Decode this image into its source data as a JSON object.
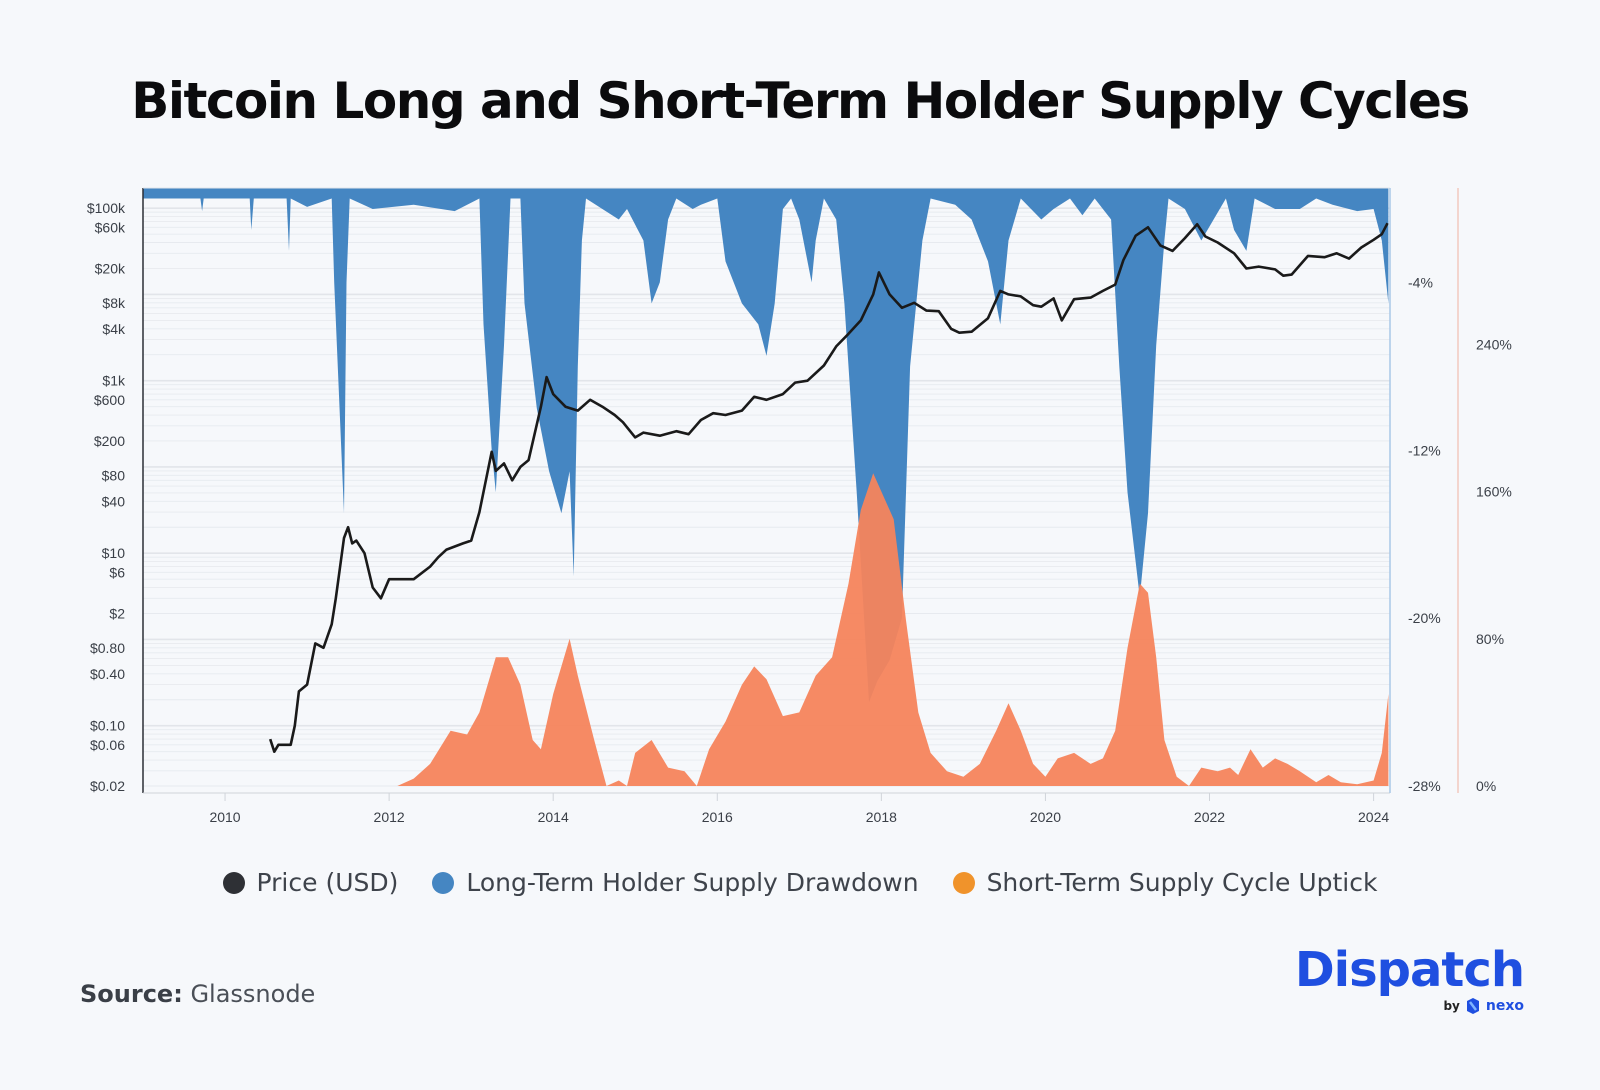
{
  "title": "Bitcoin Long and Short-Term Holder Supply Cycles",
  "legend": [
    {
      "label": "Price (USD)",
      "color": "#2E3035"
    },
    {
      "label": "Long-Term Holder Supply Drawdown",
      "color": "#4586C2"
    },
    {
      "label": "Short-Term Supply Cycle Uptick",
      "color": "#F0932B"
    }
  ],
  "source": {
    "prefix": "Source:",
    "name": "Glassnode"
  },
  "brand": {
    "name": "Dispatch",
    "by": "by",
    "partner": "nexo"
  },
  "colors": {
    "price": "#1A1A1A",
    "lth": "#4586C2",
    "sth": "#F5845C",
    "grid": "#E2E5EA",
    "right_axis_line": "#F2C9C0",
    "lth_axis_line": "#A9C8E8"
  },
  "chart_data": {
    "type": "line",
    "title": "Bitcoin Long and Short-Term Holder Supply Cycles",
    "xlabel": "",
    "xlim": [
      2009.0,
      2024.2
    ],
    "x_ticks": [
      "2010",
      "2012",
      "2014",
      "2016",
      "2018",
      "2020",
      "2022",
      "2024"
    ],
    "left_axis": {
      "scale": "log",
      "ylim": [
        0.02,
        150000
      ],
      "tick_labels": [
        "$100k",
        "$60k",
        "$20k",
        "$8k",
        "$4k",
        "$1k",
        "$600",
        "$200",
        "$80",
        "$40",
        "$10",
        "$6",
        "$2",
        "$0.80",
        "$0.40",
        "$0.10",
        "$0.06",
        "$0.02"
      ],
      "tick_values": [
        100000,
        60000,
        20000,
        8000,
        4000,
        1000,
        600,
        200,
        80,
        40,
        10,
        6,
        2,
        0.8,
        0.4,
        0.1,
        0.06,
        0.02
      ]
    },
    "lth_axis": {
      "ylim": [
        -28,
        0.5
      ],
      "tick_labels": [
        "-4%",
        "-12%",
        "-20%",
        "-28%"
      ],
      "tick_values": [
        -4,
        -12,
        -20,
        -28
      ]
    },
    "sth_axis": {
      "ylim": [
        0,
        325
      ],
      "tick_labels": [
        "240%",
        "160%",
        "80%",
        "0%"
      ],
      "tick_values": [
        240,
        160,
        80,
        0
      ]
    },
    "series": [
      {
        "name": "Price (USD)",
        "axis": "left",
        "points": [
          [
            2010.55,
            0.07
          ],
          [
            2010.6,
            0.05
          ],
          [
            2010.65,
            0.06
          ],
          [
            2010.8,
            0.06
          ],
          [
            2010.85,
            0.1
          ],
          [
            2010.9,
            0.25
          ],
          [
            2011.0,
            0.3
          ],
          [
            2011.1,
            0.9
          ],
          [
            2011.2,
            0.8
          ],
          [
            2011.3,
            1.5
          ],
          [
            2011.35,
            3
          ],
          [
            2011.45,
            15
          ],
          [
            2011.5,
            20
          ],
          [
            2011.55,
            13
          ],
          [
            2011.6,
            14
          ],
          [
            2011.7,
            10
          ],
          [
            2011.8,
            4
          ],
          [
            2011.9,
            3
          ],
          [
            2012.0,
            5
          ],
          [
            2012.1,
            5
          ],
          [
            2012.3,
            5
          ],
          [
            2012.5,
            7
          ],
          [
            2012.6,
            9
          ],
          [
            2012.7,
            11
          ],
          [
            2012.9,
            13
          ],
          [
            2013.0,
            14
          ],
          [
            2013.1,
            30
          ],
          [
            2013.25,
            150
          ],
          [
            2013.3,
            90
          ],
          [
            2013.4,
            110
          ],
          [
            2013.5,
            70
          ],
          [
            2013.6,
            100
          ],
          [
            2013.7,
            120
          ],
          [
            2013.85,
            500
          ],
          [
            2013.92,
            1100
          ],
          [
            2014.0,
            700
          ],
          [
            2014.15,
            500
          ],
          [
            2014.3,
            450
          ],
          [
            2014.45,
            600
          ],
          [
            2014.6,
            500
          ],
          [
            2014.75,
            400
          ],
          [
            2014.85,
            330
          ],
          [
            2015.0,
            220
          ],
          [
            2015.1,
            250
          ],
          [
            2015.3,
            230
          ],
          [
            2015.5,
            260
          ],
          [
            2015.65,
            240
          ],
          [
            2015.8,
            350
          ],
          [
            2015.95,
            420
          ],
          [
            2016.1,
            400
          ],
          [
            2016.3,
            450
          ],
          [
            2016.45,
            650
          ],
          [
            2016.6,
            600
          ],
          [
            2016.8,
            700
          ],
          [
            2016.95,
            950
          ],
          [
            2017.1,
            1000
          ],
          [
            2017.3,
            1500
          ],
          [
            2017.45,
            2500
          ],
          [
            2017.6,
            3500
          ],
          [
            2017.75,
            5000
          ],
          [
            2017.9,
            10000
          ],
          [
            2017.97,
            18000
          ],
          [
            2018.1,
            10000
          ],
          [
            2018.25,
            7000
          ],
          [
            2018.4,
            8000
          ],
          [
            2018.55,
            6500
          ],
          [
            2018.7,
            6400
          ],
          [
            2018.85,
            4000
          ],
          [
            2018.95,
            3600
          ],
          [
            2019.1,
            3700
          ],
          [
            2019.3,
            5300
          ],
          [
            2019.45,
            11000
          ],
          [
            2019.55,
            10000
          ],
          [
            2019.7,
            9500
          ],
          [
            2019.85,
            7500
          ],
          [
            2019.95,
            7200
          ],
          [
            2020.1,
            9000
          ],
          [
            2020.2,
            5000
          ],
          [
            2020.35,
            8800
          ],
          [
            2020.55,
            9200
          ],
          [
            2020.7,
            11000
          ],
          [
            2020.85,
            13000
          ],
          [
            2020.95,
            25000
          ],
          [
            2021.1,
            48000
          ],
          [
            2021.25,
            60000
          ],
          [
            2021.4,
            37000
          ],
          [
            2021.55,
            32000
          ],
          [
            2021.7,
            45000
          ],
          [
            2021.85,
            65000
          ],
          [
            2021.95,
            47000
          ],
          [
            2022.1,
            40000
          ],
          [
            2022.3,
            30000
          ],
          [
            2022.45,
            20000
          ],
          [
            2022.6,
            21000
          ],
          [
            2022.8,
            19500
          ],
          [
            2022.9,
            16500
          ],
          [
            2023.0,
            17000
          ],
          [
            2023.2,
            28000
          ],
          [
            2023.4,
            27000
          ],
          [
            2023.55,
            30000
          ],
          [
            2023.7,
            26000
          ],
          [
            2023.85,
            35000
          ],
          [
            2024.0,
            43000
          ],
          [
            2024.1,
            50000
          ],
          [
            2024.17,
            67000
          ]
        ]
      },
      {
        "name": "Long-Term Holder Supply Drawdown",
        "axis": "lth",
        "points": [
          [
            2009.0,
            0
          ],
          [
            2009.7,
            0
          ],
          [
            2009.72,
            -0.6
          ],
          [
            2009.74,
            0
          ],
          [
            2010.3,
            0
          ],
          [
            2010.32,
            -1.5
          ],
          [
            2010.35,
            0
          ],
          [
            2010.75,
            0
          ],
          [
            2010.78,
            -2.5
          ],
          [
            2010.8,
            0
          ],
          [
            2011.0,
            -0.4
          ],
          [
            2011.3,
            0
          ],
          [
            2011.33,
            -4
          ],
          [
            2011.45,
            -15
          ],
          [
            2011.48,
            -4
          ],
          [
            2011.52,
            0
          ],
          [
            2011.8,
            -0.5
          ],
          [
            2012.3,
            -0.3
          ],
          [
            2012.8,
            -0.6
          ],
          [
            2013.1,
            0
          ],
          [
            2013.15,
            -6
          ],
          [
            2013.25,
            -12
          ],
          [
            2013.3,
            -14
          ],
          [
            2013.4,
            -7
          ],
          [
            2013.48,
            0
          ],
          [
            2013.6,
            0
          ],
          [
            2013.65,
            -5
          ],
          [
            2013.8,
            -10
          ],
          [
            2013.95,
            -13
          ],
          [
            2014.1,
            -15
          ],
          [
            2014.2,
            -13
          ],
          [
            2014.25,
            -18
          ],
          [
            2014.3,
            -8
          ],
          [
            2014.35,
            -2
          ],
          [
            2014.4,
            0
          ],
          [
            2014.8,
            -1
          ],
          [
            2014.9,
            -0.5
          ],
          [
            2015.1,
            -2
          ],
          [
            2015.2,
            -5
          ],
          [
            2015.3,
            -4
          ],
          [
            2015.4,
            -1
          ],
          [
            2015.5,
            0
          ],
          [
            2015.7,
            -0.5
          ],
          [
            2015.8,
            -0.3
          ],
          [
            2016.0,
            0
          ],
          [
            2016.1,
            -3
          ],
          [
            2016.3,
            -5
          ],
          [
            2016.5,
            -6
          ],
          [
            2016.6,
            -7.5
          ],
          [
            2016.7,
            -5
          ],
          [
            2016.8,
            -0.5
          ],
          [
            2016.9,
            0
          ],
          [
            2017.0,
            -1
          ],
          [
            2017.15,
            -4
          ],
          [
            2017.2,
            -2
          ],
          [
            2017.3,
            0
          ],
          [
            2017.45,
            -1
          ],
          [
            2017.55,
            -5
          ],
          [
            2017.7,
            -14
          ],
          [
            2017.85,
            -24
          ],
          [
            2017.95,
            -23
          ],
          [
            2018.1,
            -22
          ],
          [
            2018.25,
            -20
          ],
          [
            2018.35,
            -8
          ],
          [
            2018.5,
            -2
          ],
          [
            2018.6,
            0
          ],
          [
            2018.9,
            -0.3
          ],
          [
            2019.1,
            -1
          ],
          [
            2019.3,
            -3
          ],
          [
            2019.45,
            -6
          ],
          [
            2019.55,
            -2
          ],
          [
            2019.7,
            0
          ],
          [
            2019.95,
            -1
          ],
          [
            2020.1,
            -0.5
          ],
          [
            2020.3,
            0
          ],
          [
            2020.45,
            -0.8
          ],
          [
            2020.6,
            0
          ],
          [
            2020.8,
            -1
          ],
          [
            2020.9,
            -8
          ],
          [
            2021.0,
            -14
          ],
          [
            2021.15,
            -19
          ],
          [
            2021.25,
            -15
          ],
          [
            2021.35,
            -7
          ],
          [
            2021.45,
            -2
          ],
          [
            2021.5,
            0
          ],
          [
            2021.7,
            -0.5
          ],
          [
            2021.9,
            -2
          ],
          [
            2022.05,
            -1
          ],
          [
            2022.2,
            0
          ],
          [
            2022.3,
            -1.5
          ],
          [
            2022.45,
            -2.5
          ],
          [
            2022.55,
            0
          ],
          [
            2022.8,
            -0.5
          ],
          [
            2023.1,
            -0.5
          ],
          [
            2023.3,
            0
          ],
          [
            2023.5,
            -0.3
          ],
          [
            2023.8,
            -0.6
          ],
          [
            2024.0,
            -0.5
          ],
          [
            2024.1,
            -2
          ],
          [
            2024.18,
            -5
          ]
        ]
      },
      {
        "name": "Short-Term Supply Cycle Uptick",
        "axis": "sth",
        "points": [
          [
            2012.1,
            0
          ],
          [
            2012.3,
            4
          ],
          [
            2012.5,
            12
          ],
          [
            2012.75,
            30
          ],
          [
            2012.95,
            28
          ],
          [
            2013.1,
            40
          ],
          [
            2013.3,
            70
          ],
          [
            2013.45,
            70
          ],
          [
            2013.6,
            55
          ],
          [
            2013.75,
            25
          ],
          [
            2013.85,
            20
          ],
          [
            2014.0,
            50
          ],
          [
            2014.2,
            80
          ],
          [
            2014.3,
            60
          ],
          [
            2014.5,
            25
          ],
          [
            2014.65,
            0
          ],
          [
            2014.8,
            3
          ],
          [
            2014.9,
            0
          ],
          [
            2015.0,
            18
          ],
          [
            2015.2,
            25
          ],
          [
            2015.4,
            10
          ],
          [
            2015.6,
            8
          ],
          [
            2015.75,
            0
          ],
          [
            2015.9,
            20
          ],
          [
            2016.1,
            35
          ],
          [
            2016.3,
            55
          ],
          [
            2016.45,
            65
          ],
          [
            2016.6,
            58
          ],
          [
            2016.8,
            38
          ],
          [
            2017.0,
            40
          ],
          [
            2017.2,
            60
          ],
          [
            2017.4,
            70
          ],
          [
            2017.6,
            110
          ],
          [
            2017.75,
            150
          ],
          [
            2017.9,
            170
          ],
          [
            2018.0,
            160
          ],
          [
            2018.15,
            145
          ],
          [
            2018.3,
            90
          ],
          [
            2018.45,
            40
          ],
          [
            2018.6,
            18
          ],
          [
            2018.8,
            8
          ],
          [
            2019.0,
            5
          ],
          [
            2019.2,
            12
          ],
          [
            2019.4,
            30
          ],
          [
            2019.55,
            45
          ],
          [
            2019.7,
            30
          ],
          [
            2019.85,
            12
          ],
          [
            2020.0,
            5
          ],
          [
            2020.15,
            15
          ],
          [
            2020.35,
            18
          ],
          [
            2020.55,
            12
          ],
          [
            2020.7,
            15
          ],
          [
            2020.85,
            30
          ],
          [
            2021.0,
            75
          ],
          [
            2021.15,
            110
          ],
          [
            2021.25,
            105
          ],
          [
            2021.35,
            70
          ],
          [
            2021.45,
            25
          ],
          [
            2021.6,
            5
          ],
          [
            2021.75,
            0
          ],
          [
            2021.9,
            10
          ],
          [
            2022.1,
            8
          ],
          [
            2022.25,
            10
          ],
          [
            2022.35,
            6
          ],
          [
            2022.5,
            20
          ],
          [
            2022.65,
            10
          ],
          [
            2022.8,
            15
          ],
          [
            2022.95,
            12
          ],
          [
            2023.1,
            8
          ],
          [
            2023.3,
            2
          ],
          [
            2023.45,
            6
          ],
          [
            2023.6,
            2
          ],
          [
            2023.8,
            1
          ],
          [
            2024.0,
            3
          ],
          [
            2024.1,
            18
          ],
          [
            2024.18,
            50
          ]
        ]
      }
    ]
  }
}
